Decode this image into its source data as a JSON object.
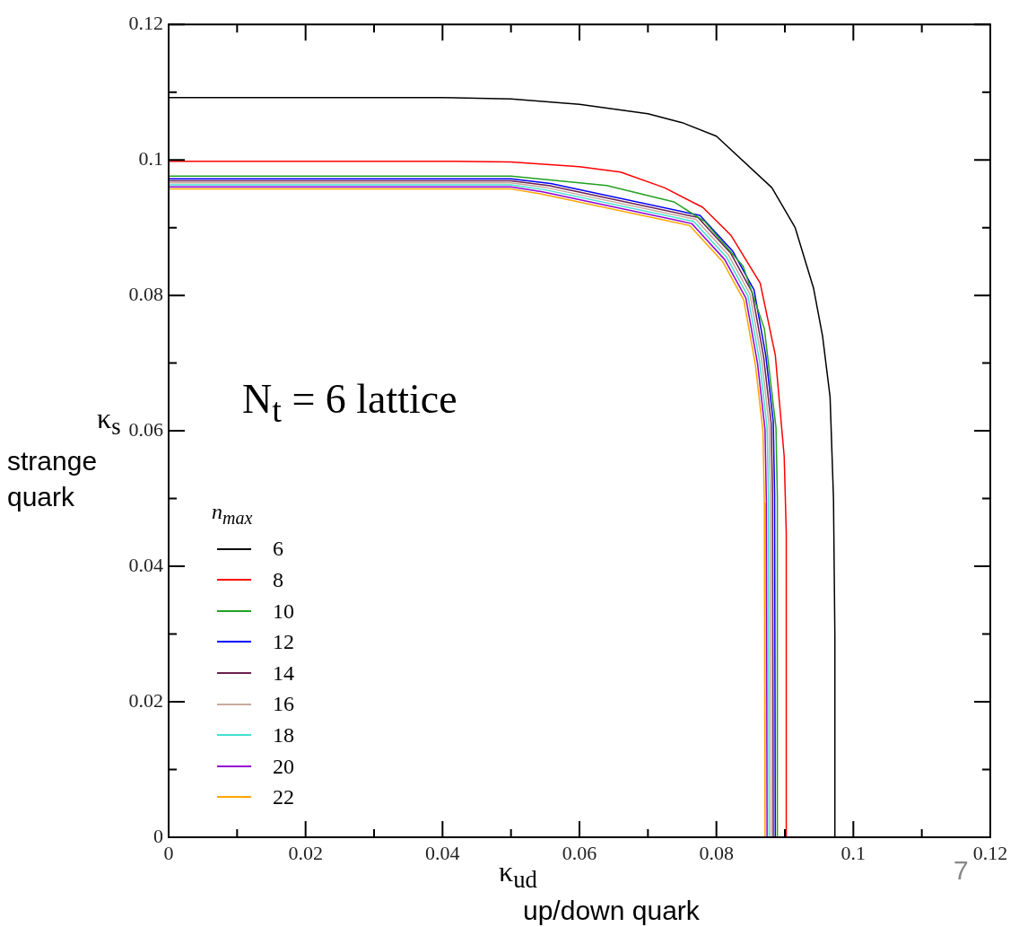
{
  "chart_data": {
    "type": "line",
    "xlabel": "κ$_{ud}$",
    "ylabel": "κ$_{s}$",
    "legend_title": "n$_{max}$",
    "legend": "bottom left",
    "marker": "none",
    "annotations": [
      "strange quark",
      "up/down quark",
      "N$_{t}$ = 6 lattice",
      "7"
    ],
    "xlim": [
      0,
      0.12
    ],
    "ylim": [
      0,
      0.12
    ],
    "xticks": [
      0,
      {
        "value": 0.01,
        "label": null
      },
      0.02,
      {
        "value": 0.03,
        "label": null
      },
      0.04,
      {
        "value": 0.05,
        "label": null
      },
      0.06,
      {
        "value": 0.07,
        "label": null
      },
      0.08,
      {
        "value": 0.09,
        "label": null
      },
      0.1,
      {
        "value": 0.11,
        "label": null
      },
      0.12
    ],
    "yticks": [
      0,
      {
        "value": 0.01,
        "label": null
      },
      0.02,
      {
        "value": 0.03,
        "label": null
      },
      0.04,
      {
        "value": 0.05,
        "label": null
      },
      0.06,
      {
        "value": 0.07,
        "label": null
      },
      0.08,
      {
        "value": 0.09,
        "label": null
      },
      0.1,
      {
        "value": 0.11,
        "label": null
      },
      0.12
    ],
    "series": [
      {
        "name": "6",
        "color": "#000000",
        "x": [
          0,
          0.04,
          0.05,
          0.06,
          0.07,
          0.075,
          0.08,
          0.0881,
          0.0915,
          0.0942,
          0.0955,
          0.0966,
          0.0971,
          0.0973,
          0.0973
        ],
        "values": [
          0.1092,
          0.1092,
          0.109,
          0.1082,
          0.1068,
          0.1055,
          0.1035,
          0.0959,
          0.09,
          0.081,
          0.074,
          0.065,
          0.05,
          0.03,
          0
        ]
      },
      {
        "name": "8",
        "color": "#ff0000",
        "x": [
          0,
          0.04,
          0.05,
          0.06,
          0.066,
          0.0724,
          0.078,
          0.0821,
          0.0864,
          0.0886,
          0.0899,
          0.0902,
          0.0902
        ],
        "values": [
          0.0998,
          0.0998,
          0.0997,
          0.099,
          0.0982,
          0.0959,
          0.093,
          0.0889,
          0.0818,
          0.0712,
          0.0562,
          0.045,
          0
        ]
      },
      {
        "name": "10",
        "color": "#22a022",
        "x": [
          0,
          0.05,
          0.064,
          0.0738,
          0.0783,
          0.0839,
          0.087,
          0.0887,
          0.0889,
          0.0889
        ],
        "values": [
          0.0976,
          0.0976,
          0.0962,
          0.0938,
          0.0909,
          0.0843,
          0.0751,
          0.0605,
          0.0503,
          0
        ]
      },
      {
        "name": "12",
        "color": "#0000ff",
        "x": [
          0,
          0.05,
          0.0558,
          0.0776,
          0.0824,
          0.0855,
          0.0872,
          0.0883,
          0.0885,
          0.0886
        ],
        "values": [
          0.0972,
          0.0972,
          0.0965,
          0.0918,
          0.0865,
          0.0808,
          0.0712,
          0.0614,
          0.0508,
          0
        ]
      },
      {
        "name": "14",
        "color": "#6b1f4f",
        "x": [
          0,
          0.05,
          0.0555,
          0.0773,
          0.0821,
          0.0852,
          0.0869,
          0.088,
          0.0882,
          0.0883
        ],
        "values": [
          0.0969,
          0.0969,
          0.0962,
          0.0915,
          0.0862,
          0.0805,
          0.0709,
          0.0611,
          0.0505,
          0
        ]
      },
      {
        "name": "16",
        "color": "#c8a8a0",
        "x": [
          0,
          0.05,
          0.0552,
          0.077,
          0.0818,
          0.0849,
          0.0866,
          0.0877,
          0.0879,
          0.088
        ],
        "values": [
          0.0966,
          0.0966,
          0.0959,
          0.0912,
          0.0859,
          0.0802,
          0.0706,
          0.0608,
          0.0502,
          0
        ]
      },
      {
        "name": "18",
        "color": "#40e0d0",
        "x": [
          0,
          0.05,
          0.0549,
          0.0767,
          0.0815,
          0.0846,
          0.0863,
          0.0874,
          0.0876,
          0.0877
        ],
        "values": [
          0.0963,
          0.0963,
          0.0956,
          0.0909,
          0.0856,
          0.0799,
          0.0703,
          0.0605,
          0.0499,
          0
        ]
      },
      {
        "name": "20",
        "color": "#9400d3",
        "x": [
          0,
          0.05,
          0.0546,
          0.0764,
          0.0812,
          0.0843,
          0.086,
          0.0871,
          0.0873,
          0.0874
        ],
        "values": [
          0.096,
          0.096,
          0.0953,
          0.0906,
          0.0853,
          0.0796,
          0.07,
          0.0602,
          0.0496,
          0
        ]
      },
      {
        "name": "22",
        "color": "#ffa500",
        "x": [
          0,
          0.05,
          0.0543,
          0.0761,
          0.0809,
          0.084,
          0.0857,
          0.0868,
          0.087,
          0.0871
        ],
        "values": [
          0.0957,
          0.0957,
          0.095,
          0.0903,
          0.085,
          0.0793,
          0.0697,
          0.0599,
          0.0493,
          0
        ]
      }
    ]
  }
}
